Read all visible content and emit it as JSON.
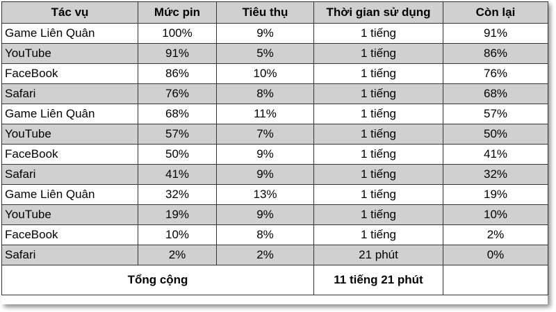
{
  "headers": [
    "Tác vụ",
    "Mức pin",
    "Tiêu thụ",
    "Thời gian sử dụng",
    "Còn lại"
  ],
  "rows": [
    {
      "task": "Game Liên Quân",
      "battery": "100%",
      "consumed": "9%",
      "duration": "1 tiếng",
      "remaining": "91%"
    },
    {
      "task": "YouTube",
      "battery": "91%",
      "consumed": "5%",
      "duration": "1 tiếng",
      "remaining": "86%"
    },
    {
      "task": "FaceBook",
      "battery": "86%",
      "consumed": "10%",
      "duration": "1 tiếng",
      "remaining": "76%"
    },
    {
      "task": "Safari",
      "battery": "76%",
      "consumed": "8%",
      "duration": "1 tiếng",
      "remaining": "68%"
    },
    {
      "task": "Game Liên Quân",
      "battery": "68%",
      "consumed": "11%",
      "duration": "1 tiếng",
      "remaining": "57%"
    },
    {
      "task": "YouTube",
      "battery": "57%",
      "consumed": "7%",
      "duration": "1 tiếng",
      "remaining": "50%"
    },
    {
      "task": "FaceBook",
      "battery": "50%",
      "consumed": "9%",
      "duration": "1 tiếng",
      "remaining": "41%"
    },
    {
      "task": "Safari",
      "battery": "41%",
      "consumed": "9%",
      "duration": "1 tiếng",
      "remaining": "32%"
    },
    {
      "task": "Game Liên Quân",
      "battery": "32%",
      "consumed": "13%",
      "duration": "1 tiếng",
      "remaining": "19%"
    },
    {
      "task": "YouTube",
      "battery": "19%",
      "consumed": "9%",
      "duration": "1 tiếng",
      "remaining": "10%"
    },
    {
      "task": "FaceBook",
      "battery": "10%",
      "consumed": "8%",
      "duration": "1 tiếng",
      "remaining": "2%"
    },
    {
      "task": "Safari",
      "battery": "2%",
      "consumed": "2%",
      "duration": "21 phút",
      "remaining": "0%"
    }
  ],
  "total": {
    "label": "Tổng cộng",
    "duration": "11 tiếng 21 phút",
    "remaining": ""
  },
  "colors": {
    "shaded_row": "#d0d0d0",
    "border": "#333333"
  }
}
